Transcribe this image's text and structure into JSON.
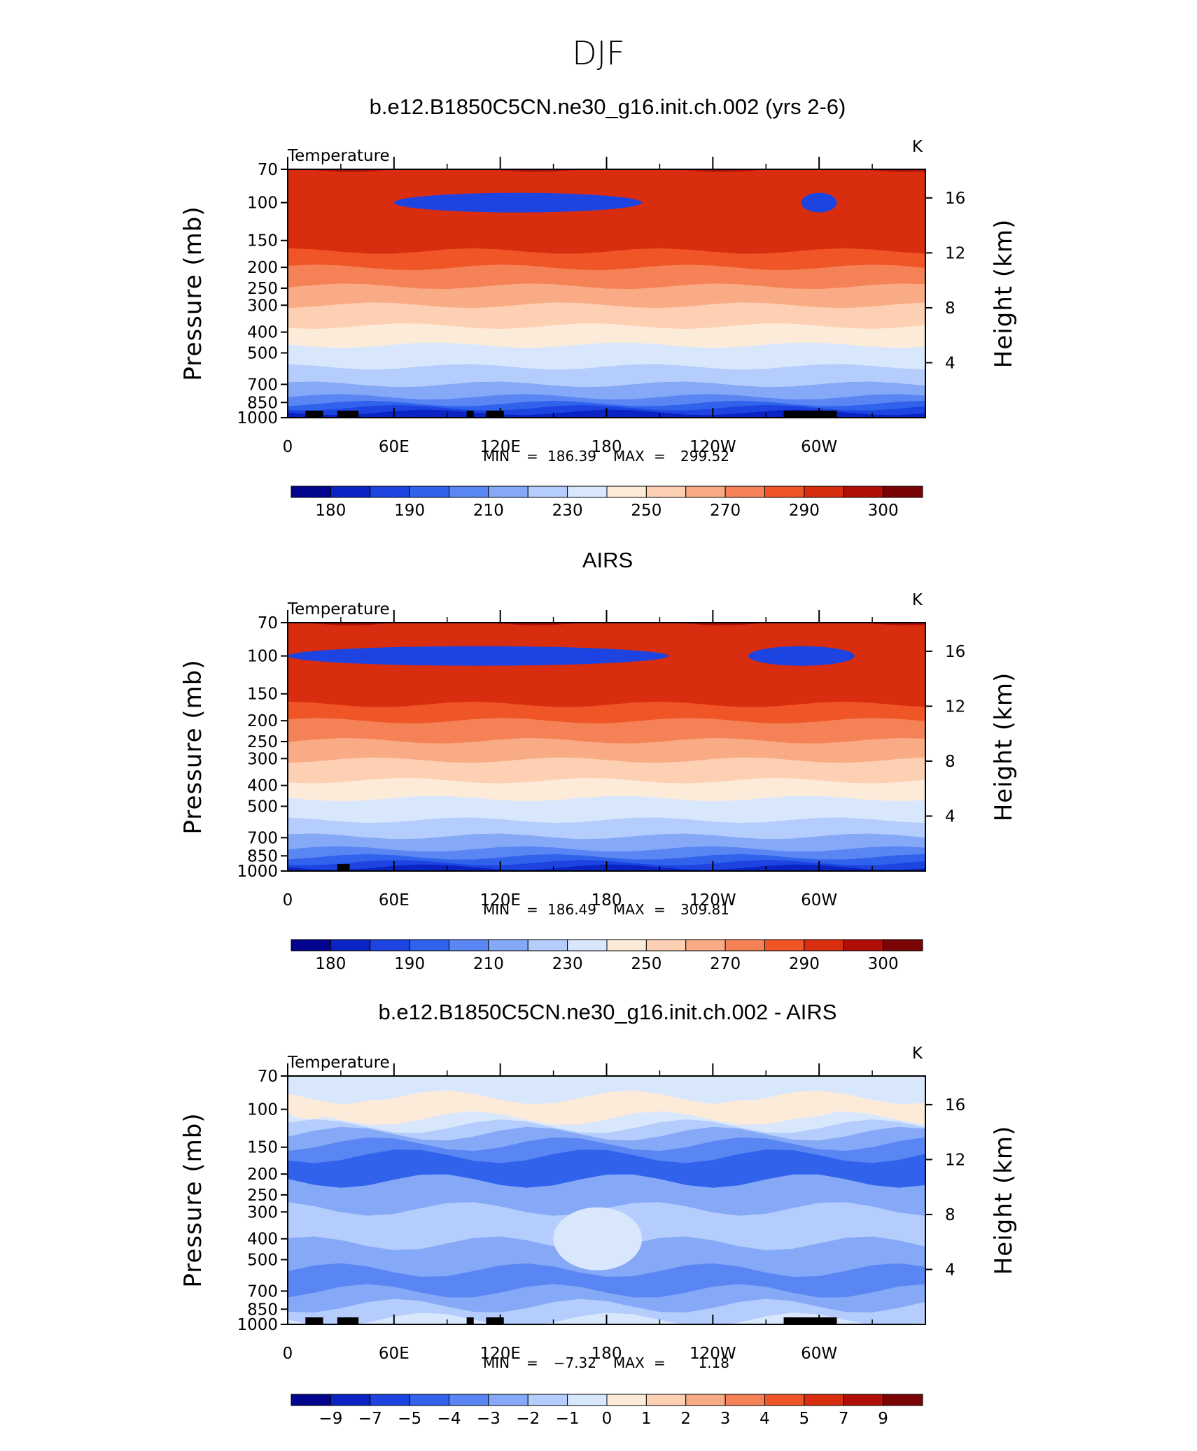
{
  "figure": {
    "title": "DJF"
  },
  "chart_data": [
    {
      "type": "heatmap",
      "title": "b.e12.B1850C5CN.ne30_g16.init.ch.002 (yrs 2-6)",
      "variable": "Temperature",
      "units": "K",
      "ylabel": "Pressure (mb)",
      "ylabel_right": "Height (km)",
      "x_ticks": [
        "0",
        "60E",
        "120E",
        "180",
        "120W",
        "60W"
      ],
      "y_ticks": [
        "70",
        "100",
        "150",
        "200",
        "250",
        "300",
        "400",
        "500",
        "700",
        "850",
        "1000"
      ],
      "right_ticks": [
        "4",
        "8",
        "12",
        "16"
      ],
      "stats": {
        "min_label": "MIN",
        "min": "186.39",
        "max_label": "MAX",
        "max": "299.52"
      },
      "colorbar_labels": [
        "180",
        "190",
        "210",
        "230",
        "250",
        "270",
        "290",
        "300"
      ],
      "colors": [
        "#03058f",
        "#0a23c2",
        "#1d44e0",
        "#3062ec",
        "#5a86f3",
        "#85a8f7",
        "#b4cdfc",
        "#d9e7fd",
        "#fdebd9",
        "#fdd0b4",
        "#f9ab85",
        "#f58257",
        "#ef5527",
        "#d92d10",
        "#b00f08",
        "#7a0404"
      ],
      "layers": [
        {
          "p": 1000,
          "y": 1
        },
        {
          "p": 945,
          "y": 2
        },
        {
          "p": 900,
          "y": 3
        },
        {
          "p": 860,
          "y": 4
        },
        {
          "p": 800,
          "y": 5
        },
        {
          "p": 700,
          "y": 6
        },
        {
          "p": 580,
          "y": 7
        },
        {
          "p": 460,
          "y": 8
        },
        {
          "p": 375,
          "y": 9
        },
        {
          "p": 300,
          "y": 10
        },
        {
          "p": 245,
          "y": 11
        },
        {
          "p": 200,
          "y": 12
        },
        {
          "p": 168,
          "y": 13
        },
        {
          "p": 70,
          "y": 14
        }
      ],
      "blobs": [
        {
          "x": [
            60,
            200
          ],
          "p_center": 100,
          "color_index": 2
        },
        {
          "x": [
            290,
            310
          ],
          "p_center": 100,
          "color_index": 2
        }
      ],
      "topo": [
        [
          10,
          20
        ],
        [
          28,
          40
        ],
        [
          101,
          105
        ],
        [
          112,
          122
        ],
        [
          280,
          310
        ]
      ]
    },
    {
      "type": "heatmap",
      "title": "AIRS",
      "variable": "Temperature",
      "units": "K",
      "ylabel": "Pressure (mb)",
      "ylabel_right": "Height (km)",
      "x_ticks": [
        "0",
        "60E",
        "120E",
        "180",
        "120W",
        "60W"
      ],
      "y_ticks": [
        "70",
        "100",
        "150",
        "200",
        "250",
        "300",
        "400",
        "500",
        "700",
        "850",
        "1000"
      ],
      "right_ticks": [
        "4",
        "8",
        "12",
        "16"
      ],
      "stats": {
        "min_label": "MIN",
        "min": "186.49",
        "max_label": "MAX",
        "max": "309.81"
      },
      "colorbar_labels": [
        "180",
        "190",
        "210",
        "230",
        "250",
        "270",
        "290",
        "300"
      ],
      "colors": [
        "#03058f",
        "#0a23c2",
        "#1d44e0",
        "#3062ec",
        "#5a86f3",
        "#85a8f7",
        "#b4cdfc",
        "#d9e7fd",
        "#fdebd9",
        "#fdd0b4",
        "#f9ab85",
        "#f58257",
        "#ef5527",
        "#d92d10",
        "#b00f08",
        "#7a0404"
      ],
      "layers": [
        {
          "p": 1000,
          "y": 1
        },
        {
          "p": 960,
          "y": 2
        },
        {
          "p": 915,
          "y": 3
        },
        {
          "p": 860,
          "y": 4
        },
        {
          "p": 790,
          "y": 5
        },
        {
          "p": 690,
          "y": 6
        },
        {
          "p": 580,
          "y": 7
        },
        {
          "p": 460,
          "y": 8
        },
        {
          "p": 380,
          "y": 9
        },
        {
          "p": 305,
          "y": 10
        },
        {
          "p": 248,
          "y": 11
        },
        {
          "p": 200,
          "y": 12
        },
        {
          "p": 168,
          "y": 13
        },
        {
          "p": 70,
          "y": 14
        }
      ],
      "blobs": [
        {
          "x": [
            0,
            215
          ],
          "p_center": 100,
          "color_index": 2
        },
        {
          "x": [
            260,
            320
          ],
          "p_center": 100,
          "color_index": 2
        }
      ],
      "topo": [
        [
          28,
          35
        ]
      ]
    },
    {
      "type": "heatmap",
      "title": "b.e12.B1850C5CN.ne30_g16.init.ch.002 - AIRS",
      "variable": "Temperature",
      "units": "K",
      "ylabel": "Pressure (mb)",
      "ylabel_right": "Height (km)",
      "x_ticks": [
        "0",
        "60E",
        "120E",
        "180",
        "120W",
        "60W"
      ],
      "y_ticks": [
        "70",
        "100",
        "150",
        "200",
        "250",
        "300",
        "400",
        "500",
        "700",
        "850",
        "1000"
      ],
      "right_ticks": [
        "4",
        "8",
        "12",
        "16"
      ],
      "stats": {
        "min_label": "MIN",
        "min": "−7.32",
        "max_label": "MAX",
        "max": "1.18"
      },
      "colorbar_labels": [
        "−9",
        "−7",
        "−5",
        "−4",
        "−3",
        "−2",
        "−1",
        "0",
        "1",
        "2",
        "3",
        "4",
        "5",
        "7",
        "9"
      ],
      "colors": [
        "#03058f",
        "#0a23c2",
        "#1d44e0",
        "#3062ec",
        "#5a86f3",
        "#85a8f7",
        "#b4cdfc",
        "#d9e7fd",
        "#fdebd9",
        "#fdd0b4",
        "#f9ab85",
        "#f58257",
        "#ef5527",
        "#d92d10",
        "#b00f08",
        "#7a0404"
      ],
      "layers": [
        {
          "p": 1000,
          "y": 7
        },
        {
          "p": 950,
          "y": 6
        },
        {
          "p": 820,
          "y": 5
        },
        {
          "p": 700,
          "y": 4
        },
        {
          "p": 560,
          "y": 5
        },
        {
          "p": 420,
          "y": 6
        },
        {
          "p": 290,
          "y": 5
        },
        {
          "p": 215,
          "y": 3
        },
        {
          "p": 165,
          "y": 4
        },
        {
          "p": 145,
          "y": 5
        },
        {
          "p": 130,
          "y": 6
        },
        {
          "p": 120,
          "y": 7
        },
        {
          "p": 110,
          "y": 8
        },
        {
          "p": 88,
          "y": 7
        },
        {
          "p": 70,
          "y": 7
        }
      ],
      "blobs": [
        {
          "x": [
            150,
            200
          ],
          "p_center": 400,
          "color_index": 7
        },
        {
          "x": [
            0,
            25
          ],
          "p_center": 100,
          "color_index": 8
        },
        {
          "x": [
            30,
            90
          ],
          "p_center": 100,
          "color_index": 8
        },
        {
          "x": [
            235,
            310
          ],
          "p_center": 100,
          "color_index": 8
        }
      ],
      "topo": [
        [
          10,
          20
        ],
        [
          28,
          40
        ],
        [
          101,
          105
        ],
        [
          112,
          122
        ],
        [
          280,
          310
        ]
      ]
    }
  ]
}
